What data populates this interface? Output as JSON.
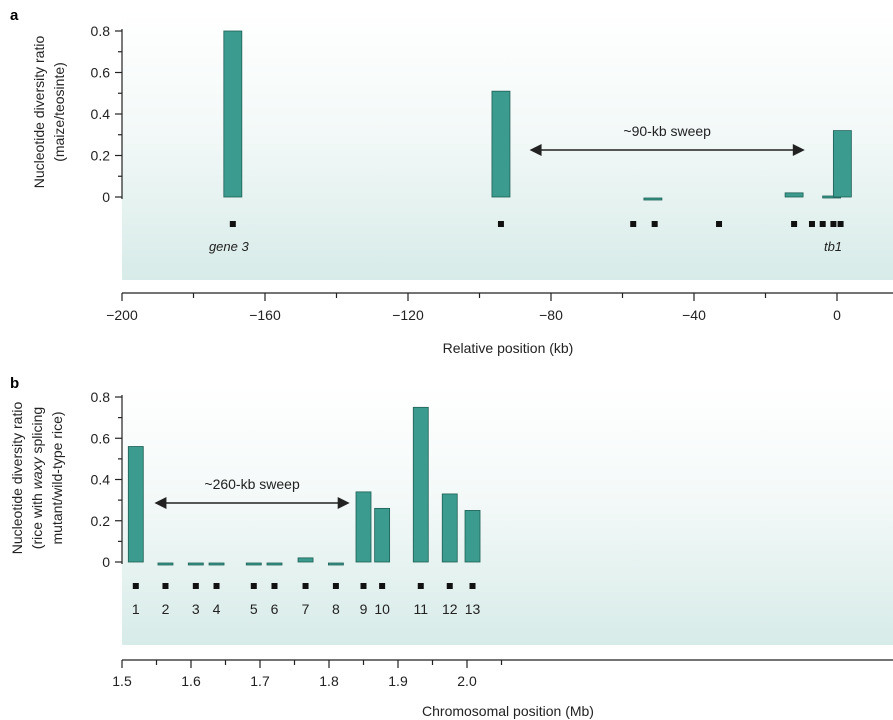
{
  "chart_data": [
    {
      "panel": "a",
      "type": "bar",
      "xlabel": "Relative position (kb)",
      "ylabel_lines": [
        "Nucleotide diversity ratio",
        "(maize/teosinte)"
      ],
      "xlim": [
        -200,
        15
      ],
      "ylim": [
        0,
        0.8
      ],
      "xticks": [
        -200,
        -160,
        -120,
        -80,
        -40,
        0
      ],
      "xtick_labels": [
        "−200",
        "−160",
        "−120",
        "−80",
        "−40",
        "0"
      ],
      "yticks": [
        0,
        0.2,
        0.4,
        0.6,
        0.8
      ],
      "ytick_labels": [
        "0",
        "0.2",
        "0.4",
        "0.6",
        "0.8"
      ],
      "bar_color": "#3a9b8e",
      "bars": [
        {
          "x": -169,
          "value": 0.8
        },
        {
          "x": -94,
          "value": 0.51
        },
        {
          "x": -51.5,
          "value": -0.02
        },
        {
          "x": -12,
          "value": 0.02
        },
        {
          "x": -1.5,
          "value": 0.0
        },
        {
          "x": 1.5,
          "value": 0.32
        }
      ],
      "sweep": {
        "label": "~90-kb sweep",
        "from": -86,
        "to": -9
      },
      "loci": [
        -169,
        -94,
        -57,
        -51,
        -33,
        -12,
        -7,
        -4,
        -1,
        1
      ],
      "gene_labels": [
        {
          "x": -169,
          "text": "gene 3"
        },
        {
          "x": 0,
          "text": "tb1"
        }
      ]
    },
    {
      "panel": "b",
      "type": "bar",
      "xlabel": "Chromosomal position (Mb)",
      "ylabel_lines": [
        "Nucleotide diversity ratio",
        "(rice with waxy splicing",
        "mutant/wild-type rice)"
      ],
      "ylabel_italic_word": "waxy",
      "xlim": [
        1.5,
        2.035
      ],
      "ylim": [
        0,
        0.8
      ],
      "xticks": [
        1.5,
        1.6,
        1.7,
        1.8,
        1.9,
        2.0
      ],
      "xtick_labels": [
        "1.5",
        "1.6",
        "1.7",
        "1.8",
        "1.9",
        "2.0"
      ],
      "yticks": [
        0,
        0.2,
        0.4,
        0.6,
        0.8
      ],
      "ytick_labels": [
        "0",
        "0.2",
        "0.4",
        "0.6",
        "0.8"
      ],
      "bar_color": "#3a9b8e",
      "bars": [
        {
          "label": "1",
          "x": 1.52,
          "value": 0.56
        },
        {
          "label": "2",
          "x": 1.563,
          "value": -0.01
        },
        {
          "label": "3",
          "x": 1.607,
          "value": -0.01
        },
        {
          "label": "4",
          "x": 1.637,
          "value": -0.01
        },
        {
          "label": "5",
          "x": 1.691,
          "value": -0.01
        },
        {
          "label": "6",
          "x": 1.721,
          "value": -0.01
        },
        {
          "label": "7",
          "x": 1.766,
          "value": 0.02
        },
        {
          "label": "8",
          "x": 1.81,
          "value": -0.01
        },
        {
          "label": "9",
          "x": 1.85,
          "value": 0.34
        },
        {
          "label": "10",
          "x": 1.877,
          "value": 0.26
        },
        {
          "label": "11",
          "x": 1.933,
          "value": 0.75
        },
        {
          "label": "12",
          "x": 1.975,
          "value": 0.33
        },
        {
          "label": "13",
          "x": 2.008,
          "value": 0.25
        }
      ],
      "sweep": {
        "label": "~260-kb sweep",
        "from": 1.547,
        "to": 1.83
      },
      "loci": [
        1.52,
        1.563,
        1.607,
        1.637,
        1.691,
        1.721,
        1.766,
        1.81,
        1.85,
        1.877,
        1.933,
        1.975,
        2.008
      ]
    }
  ]
}
